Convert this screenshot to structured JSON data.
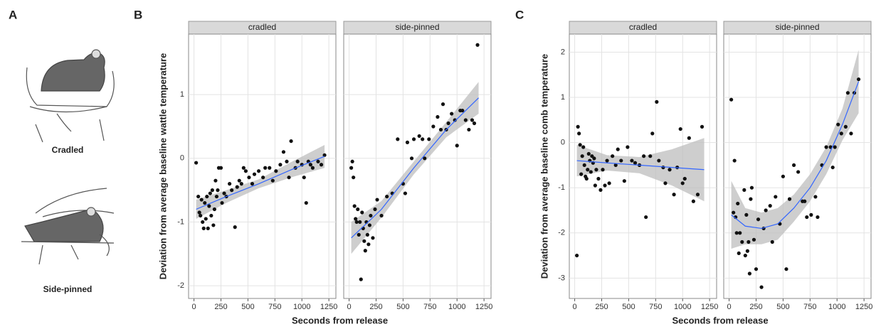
{
  "panel_a": {
    "label": "A",
    "captions": [
      "Cradled",
      "Side-pinned"
    ]
  },
  "chart_data": [
    {
      "type": "scatter",
      "panel": "B",
      "ylabel": "Deviation from average baseline wattle temperature",
      "xlabel": "Seconds from release",
      "xlim": [
        -50,
        1315
      ],
      "ylim": [
        -2.2,
        1.95
      ],
      "xticks": [
        0,
        250,
        500,
        750,
        1000,
        1250
      ],
      "yticks": [
        -2,
        -1,
        0,
        1
      ],
      "grid": true,
      "point_color": "#111111",
      "fit_color": "#3366ff",
      "band_color": "#bdbdbd",
      "facets": [
        {
          "title": "cradled",
          "x": [
            20,
            40,
            50,
            60,
            70,
            80,
            90,
            100,
            110,
            120,
            130,
            140,
            150,
            160,
            170,
            180,
            190,
            200,
            210,
            220,
            230,
            250,
            260,
            280,
            300,
            330,
            350,
            380,
            400,
            420,
            440,
            460,
            480,
            510,
            540,
            560,
            600,
            640,
            660,
            700,
            730,
            760,
            800,
            830,
            860,
            880,
            900,
            940,
            960,
            1000,
            1020,
            1040,
            1060,
            1080,
            1100,
            1150,
            1180,
            1210
          ],
          "y": [
            -0.07,
            -0.6,
            -0.85,
            -0.9,
            -0.65,
            -1.0,
            -1.1,
            -0.7,
            -0.95,
            -0.6,
            -1.1,
            -0.75,
            -0.55,
            -0.9,
            -0.5,
            -1.05,
            -0.8,
            -0.35,
            -0.6,
            -0.5,
            -0.15,
            -0.15,
            -0.7,
            -0.55,
            -0.6,
            -0.4,
            -0.5,
            -1.08,
            -0.45,
            -0.35,
            -0.4,
            -0.15,
            -0.2,
            -0.3,
            -0.4,
            -0.25,
            -0.2,
            -0.3,
            -0.15,
            -0.15,
            -0.35,
            -0.2,
            -0.1,
            0.1,
            -0.05,
            -0.3,
            0.27,
            -0.15,
            -0.05,
            -0.1,
            -0.3,
            -0.7,
            -0.05,
            -0.1,
            -0.15,
            -0.05,
            -0.1,
            0.05
          ],
          "fit": {
            "x": [
              20,
              300,
              600,
              900,
              1210
            ],
            "y": [
              -0.8,
              -0.6,
              -0.4,
              -0.18,
              0.03
            ],
            "lower": [
              -0.95,
              -0.7,
              -0.47,
              -0.3,
              -0.15
            ],
            "upper": [
              -0.65,
              -0.5,
              -0.33,
              -0.06,
              0.21
            ]
          }
        },
        {
          "title": "side-pinned",
          "x": [
            20,
            30,
            40,
            50,
            60,
            70,
            80,
            90,
            100,
            110,
            120,
            130,
            140,
            150,
            160,
            170,
            180,
            190,
            200,
            220,
            240,
            260,
            300,
            350,
            400,
            450,
            500,
            520,
            540,
            580,
            600,
            650,
            680,
            700,
            740,
            780,
            820,
            850,
            870,
            900,
            920,
            950,
            980,
            1000,
            1030,
            1050,
            1080,
            1110,
            1140,
            1160,
            1190
          ],
          "y": [
            -0.15,
            -0.05,
            -0.3,
            -0.75,
            -0.95,
            -1.0,
            -0.8,
            -1.2,
            -1.0,
            -1.9,
            -0.85,
            -1.1,
            -1.3,
            -1.45,
            -1.0,
            -1.2,
            -1.35,
            -1.05,
            -0.9,
            -1.25,
            -0.8,
            -0.65,
            -0.9,
            -0.6,
            -0.55,
            0.3,
            -0.4,
            -0.55,
            0.25,
            0.0,
            0.3,
            0.35,
            0.3,
            0.0,
            0.3,
            0.5,
            0.65,
            0.45,
            0.85,
            0.45,
            0.55,
            0.7,
            0.6,
            0.2,
            0.75,
            0.75,
            0.6,
            0.45,
            0.6,
            0.55,
            1.78
          ],
          "fit": {
            "x": [
              20,
              300,
              600,
              900,
              1200
            ],
            "y": [
              -1.25,
              -0.8,
              -0.15,
              0.45,
              0.95
            ],
            "lower": [
              -1.5,
              -0.93,
              -0.25,
              0.33,
              0.7
            ],
            "upper": [
              -1.0,
              -0.67,
              -0.05,
              0.57,
              1.2
            ]
          }
        }
      ]
    },
    {
      "type": "scatter",
      "panel": "C",
      "ylabel": "Deviation from average baseline comb temperature",
      "xlabel": "Seconds from release",
      "xlim": [
        -50,
        1315
      ],
      "ylim": [
        -3.45,
        2.4
      ],
      "xticks": [
        0,
        250,
        500,
        750,
        1000,
        1250
      ],
      "yticks": [
        -3,
        -2,
        -1,
        0,
        1,
        2
      ],
      "grid": true,
      "point_color": "#111111",
      "fit_color": "#3366ff",
      "band_color": "#bdbdbd",
      "facets": [
        {
          "title": "cradled",
          "x": [
            20,
            30,
            40,
            50,
            60,
            70,
            80,
            90,
            100,
            110,
            120,
            130,
            140,
            150,
            160,
            170,
            180,
            190,
            200,
            220,
            240,
            260,
            280,
            300,
            320,
            350,
            380,
            400,
            430,
            460,
            490,
            530,
            560,
            600,
            640,
            660,
            700,
            720,
            760,
            780,
            820,
            840,
            880,
            920,
            950,
            980,
            1000,
            1020,
            1060,
            1100,
            1140,
            1180
          ],
          "y": [
            -2.5,
            0.35,
            0.2,
            -0.05,
            -0.7,
            -0.3,
            -0.1,
            -0.5,
            -0.75,
            -0.8,
            -0.6,
            -0.25,
            -0.4,
            -0.65,
            -0.3,
            -0.45,
            -0.35,
            -0.95,
            -0.6,
            -0.8,
            -1.05,
            -0.6,
            -0.95,
            -0.4,
            -0.9,
            -0.3,
            -0.5,
            -0.15,
            -0.4,
            -0.85,
            -0.1,
            -0.4,
            -0.45,
            -0.5,
            -0.3,
            -1.65,
            -0.3,
            0.2,
            0.9,
            -0.4,
            -0.55,
            -0.9,
            -0.6,
            -1.15,
            -0.55,
            0.3,
            -0.9,
            -0.8,
            0.1,
            -1.3,
            -1.15,
            0.35
          ],
          "fit": {
            "x": [
              20,
              300,
              600,
              900,
              1200
            ],
            "y": [
              -0.4,
              -0.45,
              -0.5,
              -0.55,
              -0.6
            ],
            "lower": [
              -0.75,
              -0.62,
              -0.68,
              -0.95,
              -1.3
            ],
            "upper": [
              -0.05,
              -0.28,
              -0.32,
              -0.15,
              0.1
            ]
          }
        },
        {
          "title": "side-pinned",
          "x": [
            20,
            40,
            50,
            60,
            70,
            80,
            90,
            100,
            120,
            140,
            150,
            160,
            170,
            180,
            190,
            200,
            210,
            230,
            250,
            270,
            300,
            320,
            340,
            380,
            400,
            430,
            470,
            500,
            530,
            560,
            600,
            640,
            680,
            700,
            720,
            760,
            800,
            820,
            860,
            900,
            940,
            960,
            980,
            1010,
            1040,
            1080,
            1100,
            1130,
            1160,
            1200
          ],
          "y": [
            0.95,
            -1.55,
            -0.4,
            -1.65,
            -2.0,
            -1.35,
            -2.45,
            -2.0,
            -2.2,
            -1.05,
            -2.5,
            -1.6,
            -2.4,
            -2.2,
            -2.9,
            -1.25,
            -1.0,
            -2.15,
            -2.8,
            -1.7,
            -3.2,
            -1.9,
            -1.5,
            -1.4,
            -2.2,
            -1.2,
            -1.8,
            -0.75,
            -2.8,
            -1.25,
            -0.5,
            -0.65,
            -1.3,
            -1.3,
            -1.65,
            -1.6,
            -1.2,
            -1.65,
            -0.5,
            -0.1,
            -0.1,
            -0.55,
            -0.1,
            0.4,
            0.2,
            0.35,
            1.1,
            0.2,
            1.1,
            1.4
          ],
          "fit": {
            "x": [
              20,
              150,
              300,
              450,
              600,
              750,
              900,
              1050,
              1200
            ],
            "y": [
              -1.6,
              -1.85,
              -1.9,
              -1.8,
              -1.45,
              -1.0,
              -0.4,
              0.4,
              1.35
            ],
            "lower": [
              -2.35,
              -2.25,
              -2.25,
              -2.15,
              -1.75,
              -1.3,
              -0.7,
              0.05,
              0.65
            ],
            "upper": [
              -0.85,
              -1.45,
              -1.55,
              -1.45,
              -1.15,
              -0.7,
              -0.1,
              0.75,
              2.05
            ]
          }
        }
      ]
    }
  ]
}
